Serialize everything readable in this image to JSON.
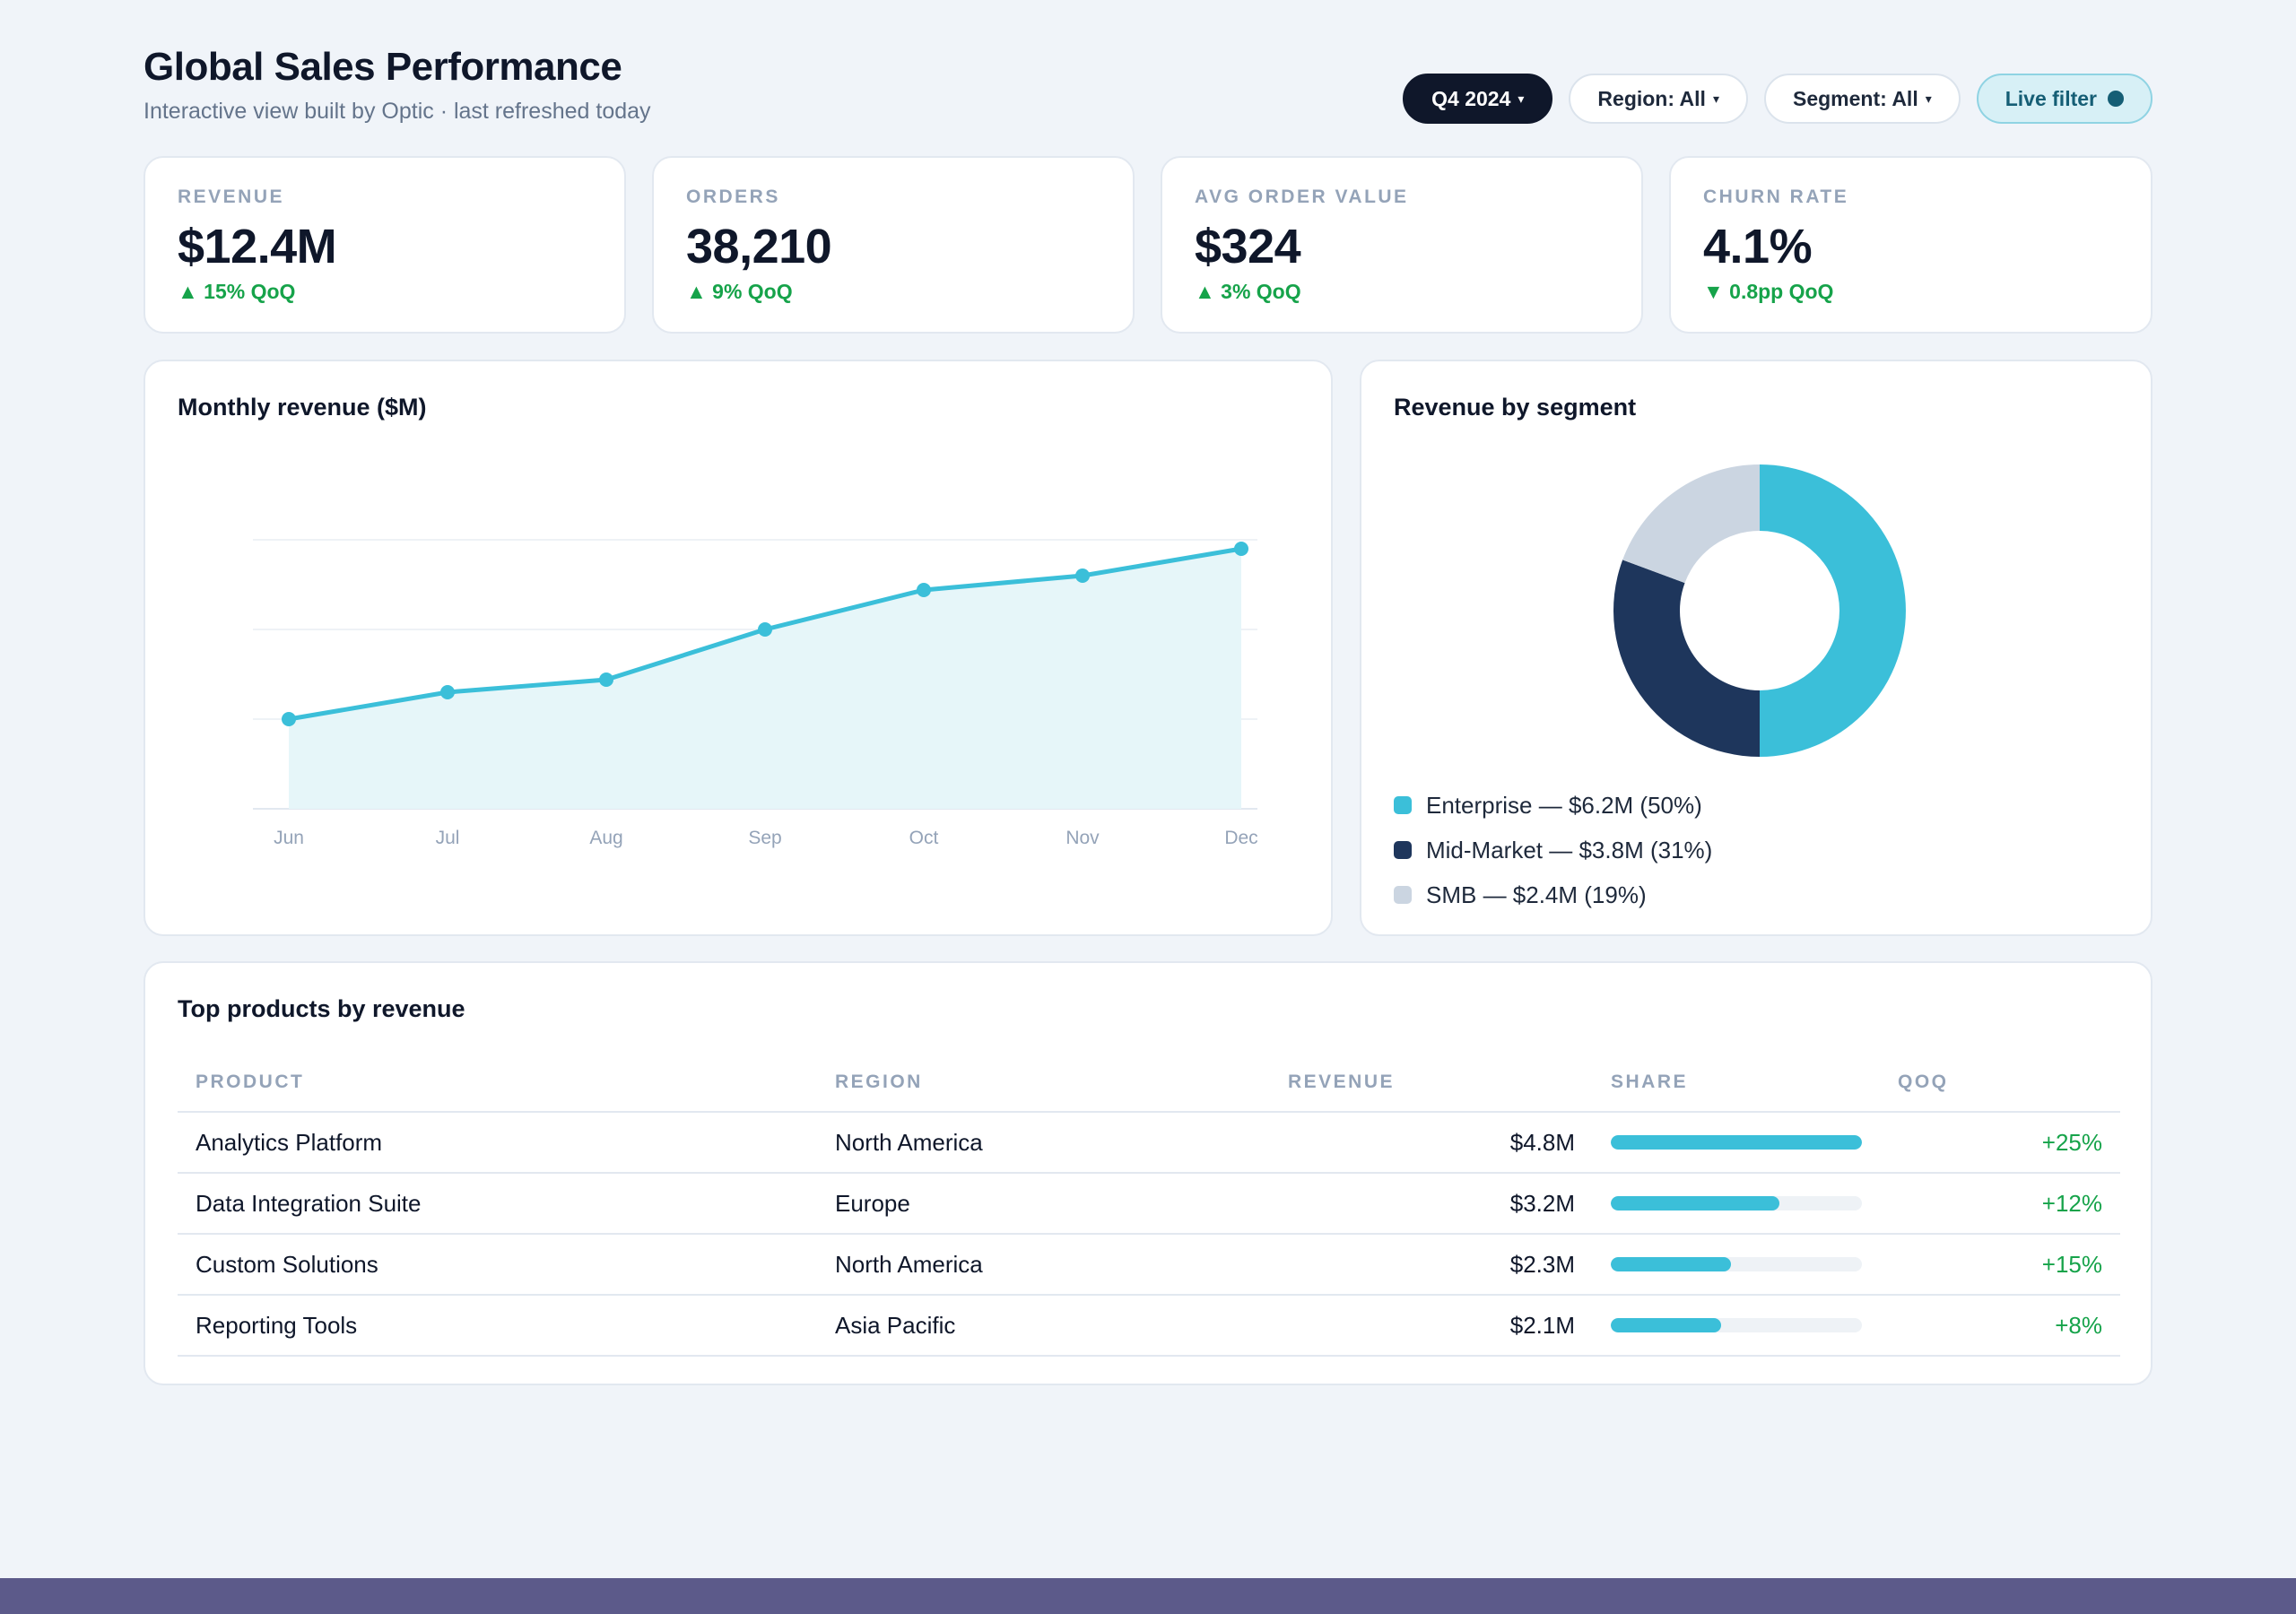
{
  "header": {
    "title": "Global Sales Performance",
    "subtitle": "Interactive view built by Optic · last refreshed today"
  },
  "filters": {
    "period": "Q4 2024",
    "region": "Region: All",
    "segment": "Segment: All",
    "live": "Live filter",
    "caret": "▾"
  },
  "kpis": [
    {
      "label": "REVENUE",
      "value": "$12.4M",
      "delta": "▲ 15% QoQ"
    },
    {
      "label": "ORDERS",
      "value": "38,210",
      "delta": "▲ 9% QoQ"
    },
    {
      "label": "AVG ORDER VALUE",
      "value": "$324",
      "delta": "▲ 3% QoQ"
    },
    {
      "label": "CHURN RATE",
      "value": "4.1%",
      "delta": "▼ 0.8pp QoQ"
    }
  ],
  "revenue_chart": {
    "title": "Monthly revenue ($M)"
  },
  "segment_chart": {
    "title": "Revenue by segment",
    "legend": [
      "Enterprise — $6.2M (50%)",
      "Mid-Market — $3.8M (31%)",
      "SMB — $2.4M (19%)"
    ]
  },
  "chart_data": [
    {
      "type": "area",
      "title": "Monthly revenue ($M)",
      "categories": [
        "Jun",
        "Jul",
        "Aug",
        "Sep",
        "Oct",
        "Nov",
        "Dec"
      ],
      "values": [
        1.0,
        1.3,
        1.44,
        2.0,
        2.44,
        2.6,
        2.9
      ],
      "ylim": [
        0,
        3
      ],
      "grid": true,
      "color": "#3bbfd9",
      "fill": "#e6f6f9"
    },
    {
      "type": "pie",
      "title": "Revenue by segment",
      "categories": [
        "Enterprise",
        "Mid-Market",
        "SMB"
      ],
      "values": [
        6.2,
        3.8,
        2.4
      ],
      "percent": [
        50,
        31,
        19
      ],
      "colors": [
        "#3bbfd9",
        "#1e365c",
        "#cbd5e1"
      ],
      "donut": true
    }
  ],
  "table": {
    "title": "Top products by revenue",
    "columns": [
      "PRODUCT",
      "REGION",
      "REVENUE",
      "SHARE",
      "QOQ"
    ],
    "rows": [
      {
        "product": "Analytics Platform",
        "region": "North America",
        "revenue": "$4.8M",
        "share": 1.0,
        "qoq": "+25%"
      },
      {
        "product": "Data Integration Suite",
        "region": "Europe",
        "revenue": "$3.2M",
        "share": 0.67,
        "qoq": "+12%"
      },
      {
        "product": "Custom Solutions",
        "region": "North America",
        "revenue": "$2.3M",
        "share": 0.48,
        "qoq": "+15%"
      },
      {
        "product": "Reporting Tools",
        "region": "Asia Pacific",
        "revenue": "$2.1M",
        "share": 0.44,
        "qoq": "+8%"
      }
    ]
  }
}
